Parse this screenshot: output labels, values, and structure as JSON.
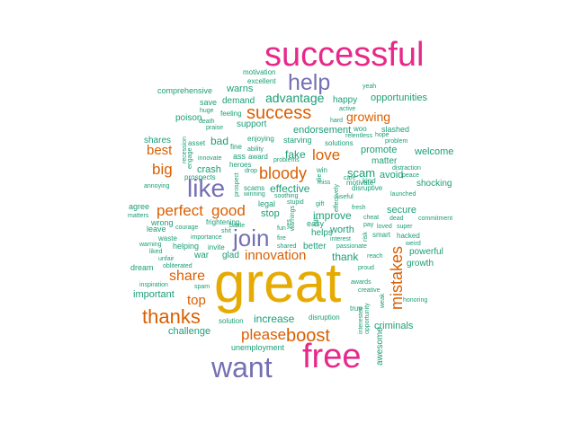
{
  "palette": {
    "magenta": "#e7298a",
    "purple": "#7570b3",
    "orange": "#d95f02",
    "gold": "#e6ab02",
    "teal": "#1b9e77"
  },
  "words": [
    {
      "text": "great",
      "color": "gold"
    },
    {
      "text": "successful",
      "color": "magenta"
    },
    {
      "text": "free",
      "color": "magenta"
    },
    {
      "text": "want",
      "color": "purple"
    },
    {
      "text": "like",
      "color": "purple"
    },
    {
      "text": "join",
      "color": "purple"
    },
    {
      "text": "help",
      "color": "purple"
    },
    {
      "text": "success",
      "color": "orange"
    },
    {
      "text": "thanks",
      "color": "orange"
    },
    {
      "text": "mistakes",
      "color": "orange"
    },
    {
      "text": "boost",
      "color": "orange"
    },
    {
      "text": "bloody",
      "color": "orange"
    },
    {
      "text": "please",
      "color": "orange"
    },
    {
      "text": "perfect",
      "color": "orange"
    },
    {
      "text": "share",
      "color": "orange"
    },
    {
      "text": "innovation",
      "color": "orange"
    },
    {
      "text": "love",
      "color": "orange"
    },
    {
      "text": "good",
      "color": "orange"
    },
    {
      "text": "big",
      "color": "orange"
    },
    {
      "text": "best",
      "color": "orange"
    },
    {
      "text": "top",
      "color": "orange"
    },
    {
      "text": "growing",
      "color": "orange"
    },
    {
      "text": "advantage",
      "color": "teal"
    },
    {
      "text": "warns",
      "color": "teal"
    },
    {
      "text": "opportunities",
      "color": "teal"
    },
    {
      "text": "comprehensive",
      "color": "teal"
    },
    {
      "text": "demand",
      "color": "teal"
    },
    {
      "text": "save",
      "color": "teal"
    },
    {
      "text": "poison",
      "color": "teal"
    },
    {
      "text": "support",
      "color": "teal"
    },
    {
      "text": "endorsement",
      "color": "teal"
    },
    {
      "text": "happy",
      "color": "teal"
    },
    {
      "text": "slashed",
      "color": "teal"
    },
    {
      "text": "bad",
      "color": "teal"
    },
    {
      "text": "shares",
      "color": "teal"
    },
    {
      "text": "fake",
      "color": "teal"
    },
    {
      "text": "starving",
      "color": "teal"
    },
    {
      "text": "promote",
      "color": "teal"
    },
    {
      "text": "welcome",
      "color": "teal"
    },
    {
      "text": "matter",
      "color": "teal"
    },
    {
      "text": "crash",
      "color": "teal"
    },
    {
      "text": "effective",
      "color": "teal"
    },
    {
      "text": "scam",
      "color": "teal"
    },
    {
      "text": "avoid",
      "color": "teal"
    },
    {
      "text": "shocking",
      "color": "teal"
    },
    {
      "text": "secure",
      "color": "teal"
    },
    {
      "text": "improve",
      "color": "teal"
    },
    {
      "text": "stop",
      "color": "teal"
    },
    {
      "text": "helps",
      "color": "teal"
    },
    {
      "text": "worth",
      "color": "teal"
    },
    {
      "text": "powerful",
      "color": "teal"
    },
    {
      "text": "growth",
      "color": "teal"
    },
    {
      "text": "thank",
      "color": "teal"
    },
    {
      "text": "better",
      "color": "teal"
    },
    {
      "text": "important",
      "color": "teal"
    },
    {
      "text": "war",
      "color": "teal"
    },
    {
      "text": "glad",
      "color": "teal"
    },
    {
      "text": "increase",
      "color": "teal"
    },
    {
      "text": "criminals",
      "color": "teal"
    },
    {
      "text": "challenge",
      "color": "teal"
    },
    {
      "text": "unemployment",
      "color": "teal"
    },
    {
      "text": "awesome",
      "color": "teal"
    },
    {
      "text": "legal",
      "color": "teal"
    },
    {
      "text": "easy",
      "color": "teal"
    },
    {
      "text": "helping",
      "color": "teal"
    },
    {
      "text": "wrong",
      "color": "teal"
    },
    {
      "text": "agree",
      "color": "teal"
    },
    {
      "text": "leave",
      "color": "teal"
    },
    {
      "text": "dream",
      "color": "teal"
    },
    {
      "text": "disruption",
      "color": "teal"
    },
    {
      "text": "solution",
      "color": "teal"
    },
    {
      "text": "motivation",
      "color": "teal"
    },
    {
      "text": "excellent",
      "color": "teal"
    },
    {
      "text": "yeah",
      "color": "teal"
    },
    {
      "text": "active",
      "color": "teal"
    },
    {
      "text": "feeling",
      "color": "teal"
    },
    {
      "text": "huge",
      "color": "teal"
    },
    {
      "text": "death",
      "color": "teal"
    },
    {
      "text": "praise",
      "color": "teal"
    },
    {
      "text": "hard",
      "color": "teal"
    },
    {
      "text": "woo",
      "color": "teal"
    },
    {
      "text": "relentless",
      "color": "teal"
    },
    {
      "text": "solutions",
      "color": "teal"
    },
    {
      "text": "problem",
      "color": "teal"
    },
    {
      "text": "enjoying",
      "color": "teal"
    },
    {
      "text": "ability",
      "color": "teal"
    },
    {
      "text": "asset",
      "color": "teal"
    },
    {
      "text": "fine",
      "color": "teal"
    },
    {
      "text": "innovate",
      "color": "teal"
    },
    {
      "text": "ass",
      "color": "teal"
    },
    {
      "text": "award",
      "color": "teal"
    },
    {
      "text": "problems",
      "color": "teal"
    },
    {
      "text": "die",
      "color": "teal"
    },
    {
      "text": "motivate",
      "color": "teal"
    },
    {
      "text": "distraction",
      "color": "teal"
    },
    {
      "text": "peace",
      "color": "teal"
    },
    {
      "text": "kind",
      "color": "teal"
    },
    {
      "text": "care",
      "color": "teal"
    },
    {
      "text": "disruptive",
      "color": "teal"
    },
    {
      "text": "prospects",
      "color": "teal"
    },
    {
      "text": "heroes",
      "color": "teal"
    },
    {
      "text": "drop",
      "color": "teal"
    },
    {
      "text": "win",
      "color": "teal"
    },
    {
      "text": "miss",
      "color": "teal"
    },
    {
      "text": "annoying",
      "color": "teal"
    },
    {
      "text": "scams",
      "color": "teal"
    },
    {
      "text": "winning",
      "color": "teal"
    },
    {
      "text": "soothing",
      "color": "teal"
    },
    {
      "text": "launched",
      "color": "teal"
    },
    {
      "text": "useful",
      "color": "teal"
    },
    {
      "text": "stupid",
      "color": "teal"
    },
    {
      "text": "gift",
      "color": "teal"
    },
    {
      "text": "fresh",
      "color": "teal"
    },
    {
      "text": "matters",
      "color": "teal"
    },
    {
      "text": "frightening",
      "color": "teal"
    },
    {
      "text": "cheat",
      "color": "teal"
    },
    {
      "text": "dead",
      "color": "teal"
    },
    {
      "text": "commitment",
      "color": "teal"
    },
    {
      "text": "courage",
      "color": "teal"
    },
    {
      "text": "battle",
      "color": "teal"
    },
    {
      "text": "fun",
      "color": "teal"
    },
    {
      "text": "pay",
      "color": "teal"
    },
    {
      "text": "loved",
      "color": "teal"
    },
    {
      "text": "super",
      "color": "teal"
    },
    {
      "text": "shit",
      "color": "teal"
    },
    {
      "text": "waste",
      "color": "teal"
    },
    {
      "text": "importance",
      "color": "teal"
    },
    {
      "text": "fire",
      "color": "teal"
    },
    {
      "text": "interest",
      "color": "teal"
    },
    {
      "text": "smart",
      "color": "teal"
    },
    {
      "text": "hacked",
      "color": "teal"
    },
    {
      "text": "warning",
      "color": "teal"
    },
    {
      "text": "liked",
      "color": "teal"
    },
    {
      "text": "shared",
      "color": "teal"
    },
    {
      "text": "passionate",
      "color": "teal"
    },
    {
      "text": "weird",
      "color": "teal"
    },
    {
      "text": "unfair",
      "color": "teal"
    },
    {
      "text": "invite",
      "color": "teal"
    },
    {
      "text": "reach",
      "color": "teal"
    },
    {
      "text": "obliterated",
      "color": "teal"
    },
    {
      "text": "proud",
      "color": "teal"
    },
    {
      "text": "inspiration",
      "color": "teal"
    },
    {
      "text": "spam",
      "color": "teal"
    },
    {
      "text": "awards",
      "color": "teal"
    },
    {
      "text": "honoring",
      "color": "teal"
    },
    {
      "text": "creative",
      "color": "teal"
    },
    {
      "text": "hope",
      "color": "teal"
    },
    {
      "text": "recession",
      "color": "teal"
    },
    {
      "text": "engage",
      "color": "teal"
    },
    {
      "text": "prospect",
      "color": "teal"
    },
    {
      "text": "effectively",
      "color": "teal"
    },
    {
      "text": "warnings",
      "color": "teal"
    },
    {
      "text": "yes",
      "color": "teal"
    },
    {
      "text": "fall",
      "color": "teal"
    },
    {
      "text": "true",
      "color": "teal"
    },
    {
      "text": "risk",
      "color": "teal"
    },
    {
      "text": "interested",
      "color": "teal"
    },
    {
      "text": "opportunity",
      "color": "teal"
    },
    {
      "text": "weak",
      "color": "teal"
    }
  ]
}
